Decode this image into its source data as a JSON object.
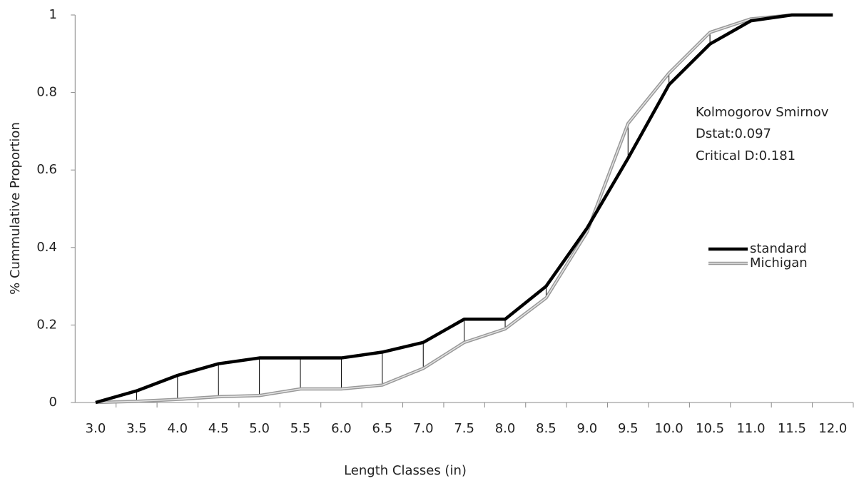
{
  "chart_data": {
    "type": "line",
    "x_label": "Length Classes (in)",
    "y_label": "% Cummulative Proportion",
    "annotations": [
      "Kolmogorov Smirnov",
      "Dstat:0.097",
      "Critical D:0.181"
    ],
    "categories": [
      "3.0",
      "3.5",
      "4.0",
      "4.5",
      "5.0",
      "5.5",
      "6.0",
      "6.5",
      "7.0",
      "7.5",
      "8.0",
      "8.5",
      "9.0",
      "9.5",
      "10.0",
      "10.5",
      "11.0",
      "11.5",
      "12.0"
    ],
    "series": [
      {
        "name": "standard",
        "color": "#000000",
        "values": [
          0,
          0.03,
          0.07,
          0.1,
          0.115,
          0.115,
          0.115,
          0.13,
          0.155,
          0.215,
          0.215,
          0.3,
          0.45,
          0.63,
          0.82,
          0.925,
          0.985,
          1,
          1
        ]
      },
      {
        "name": "Michigan",
        "color": "#999999",
        "values": [
          0,
          0.003,
          0.008,
          0.015,
          0.018,
          0.035,
          0.035,
          0.045,
          0.088,
          0.155,
          0.19,
          0.27,
          0.44,
          0.72,
          0.85,
          0.955,
          0.99,
          1,
          1
        ]
      }
    ],
    "ylim": [
      0,
      1
    ],
    "yticks": [
      0,
      0.2,
      0.4,
      0.6,
      0.8,
      1
    ],
    "grid": false
  }
}
